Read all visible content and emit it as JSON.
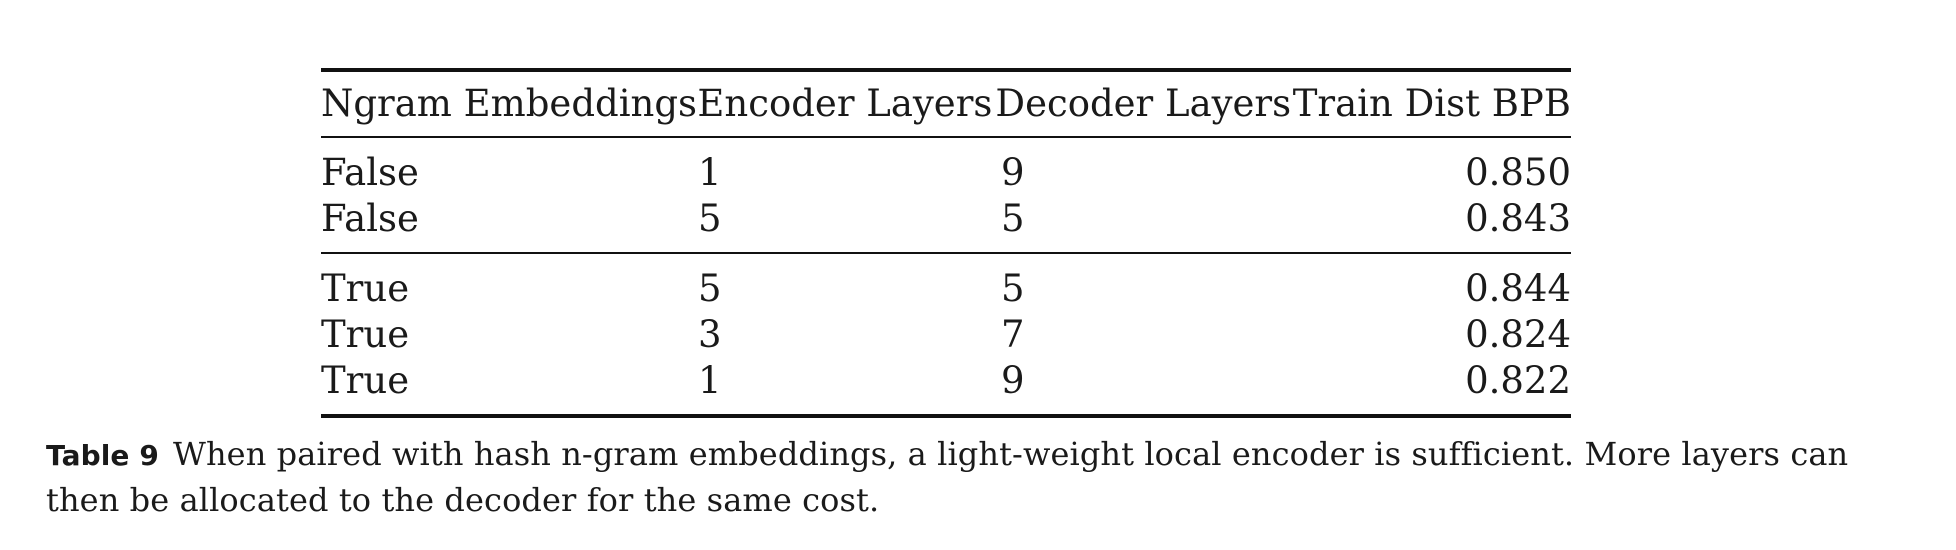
{
  "table": {
    "headers": [
      "Ngram Embeddings",
      "Encoder Layers",
      "Decoder Layers",
      "Train Dist BPB"
    ],
    "groups": [
      {
        "rows": [
          [
            "False",
            "1",
            "9",
            "0.850"
          ],
          [
            "False",
            "5",
            "5",
            "0.843"
          ]
        ]
      },
      {
        "rows": [
          [
            "True",
            "5",
            "5",
            "0.844"
          ],
          [
            "True",
            "3",
            "7",
            "0.824"
          ],
          [
            "True",
            "1",
            "9",
            "0.822"
          ]
        ]
      }
    ]
  },
  "caption": {
    "label": "Table 9",
    "text": "When paired with hash n-gram embeddings, a light-weight local encoder is sufficient. More layers can then be allocated to the decoder for the same cost."
  }
}
